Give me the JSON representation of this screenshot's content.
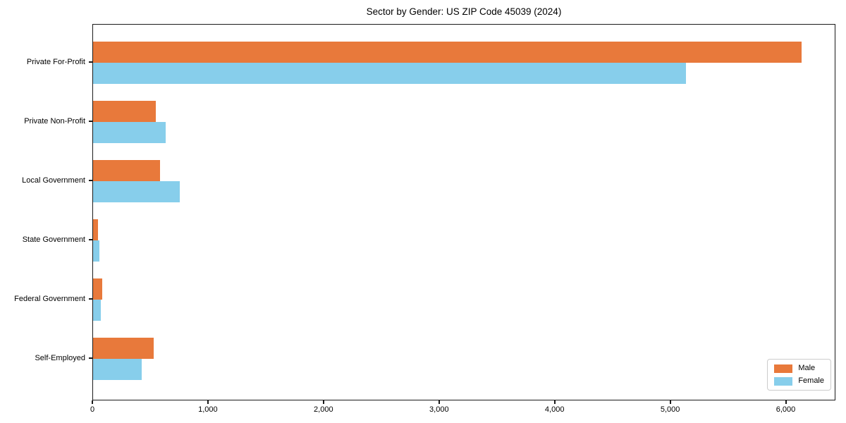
{
  "title": "Sector by Gender: US ZIP Code 45039 (2024)",
  "colors": {
    "male": "#E8793B",
    "female": "#87CEEB",
    "axis": "#1a1a1a",
    "legend_border": "#cccccc",
    "background": "#ffffff"
  },
  "legend": {
    "position": "lower right",
    "items": [
      {
        "label": "Male"
      },
      {
        "label": "Female"
      }
    ]
  },
  "chart_data": {
    "type": "bar",
    "orientation": "horizontal",
    "title": "Sector by Gender: US ZIP Code 45039 (2024)",
    "categories": [
      "Private For-Profit",
      "Private Non-Profit",
      "Local Government",
      "State Government",
      "Federal Government",
      "Self-Employed"
    ],
    "series": [
      {
        "name": "Male",
        "color": "#E8793B",
        "values": [
          6130,
          540,
          580,
          45,
          80,
          525
        ]
      },
      {
        "name": "Female",
        "color": "#87CEEB",
        "values": [
          5130,
          630,
          750,
          55,
          65,
          420
        ]
      }
    ],
    "xlabel": "",
    "ylabel": "",
    "xlim": [
      0,
      6430
    ],
    "xticks": [
      0,
      1000,
      2000,
      3000,
      4000,
      5000,
      6000
    ],
    "xtick_labels": [
      "0",
      "1,000",
      "2,000",
      "3,000",
      "4,000",
      "5,000",
      "6,000"
    ],
    "grid": false,
    "legend_position": "lower right"
  }
}
